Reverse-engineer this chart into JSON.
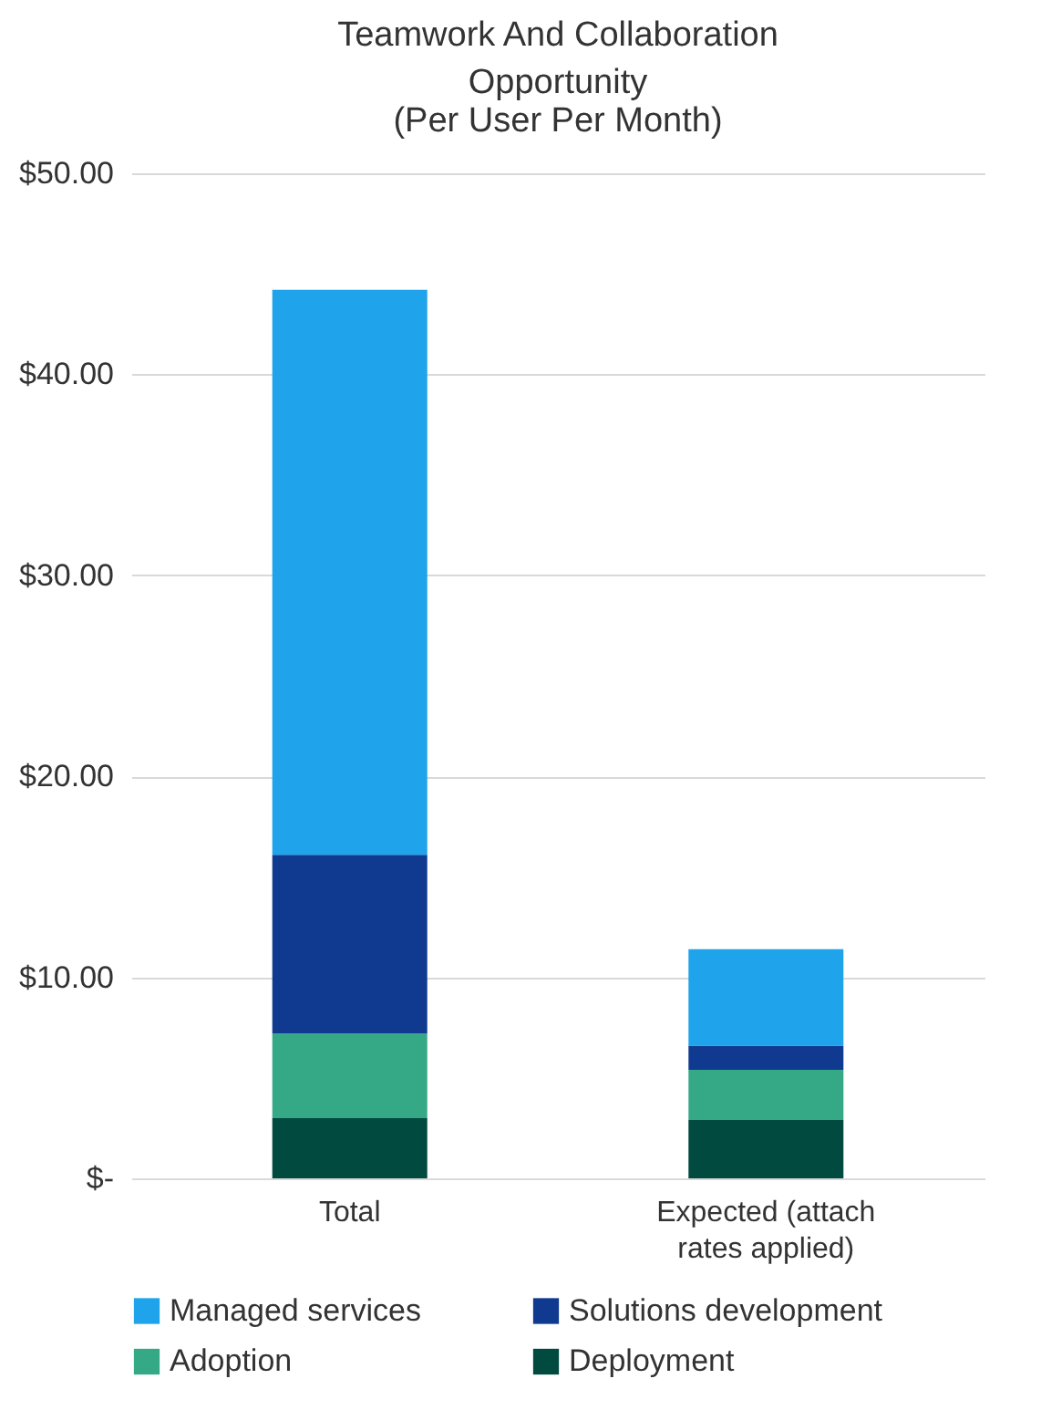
{
  "chart_data": {
    "type": "bar",
    "title": "Teamwork And Collaboration Opportunity",
    "subtitle": "(Per User Per Month)",
    "categories": [
      "Total",
      "Expected (attach rates applied)"
    ],
    "stacked": true,
    "series": [
      {
        "name": "Deployment",
        "color": "#014a3f",
        "values": [
          3.0,
          2.9
        ]
      },
      {
        "name": "Adoption",
        "color": "#35a986",
        "values": [
          4.2,
          2.5
        ]
      },
      {
        "name": "Solutions development",
        "color": "#0f3a8f",
        "values": [
          8.9,
          1.2
        ]
      },
      {
        "name": "Managed services",
        "color": "#1fa3ea",
        "values": [
          28.1,
          4.8
        ]
      }
    ],
    "ylim": [
      0,
      50
    ],
    "yticks": [
      {
        "value": 0,
        "label": "$-"
      },
      {
        "value": 10,
        "label": "$10.00"
      },
      {
        "value": 20,
        "label": "$20.00"
      },
      {
        "value": 30,
        "label": "$30.00"
      },
      {
        "value": 40,
        "label": "$40.00"
      },
      {
        "value": 50,
        "label": "$50.00"
      }
    ],
    "grid": "y",
    "legend": "bottom"
  }
}
